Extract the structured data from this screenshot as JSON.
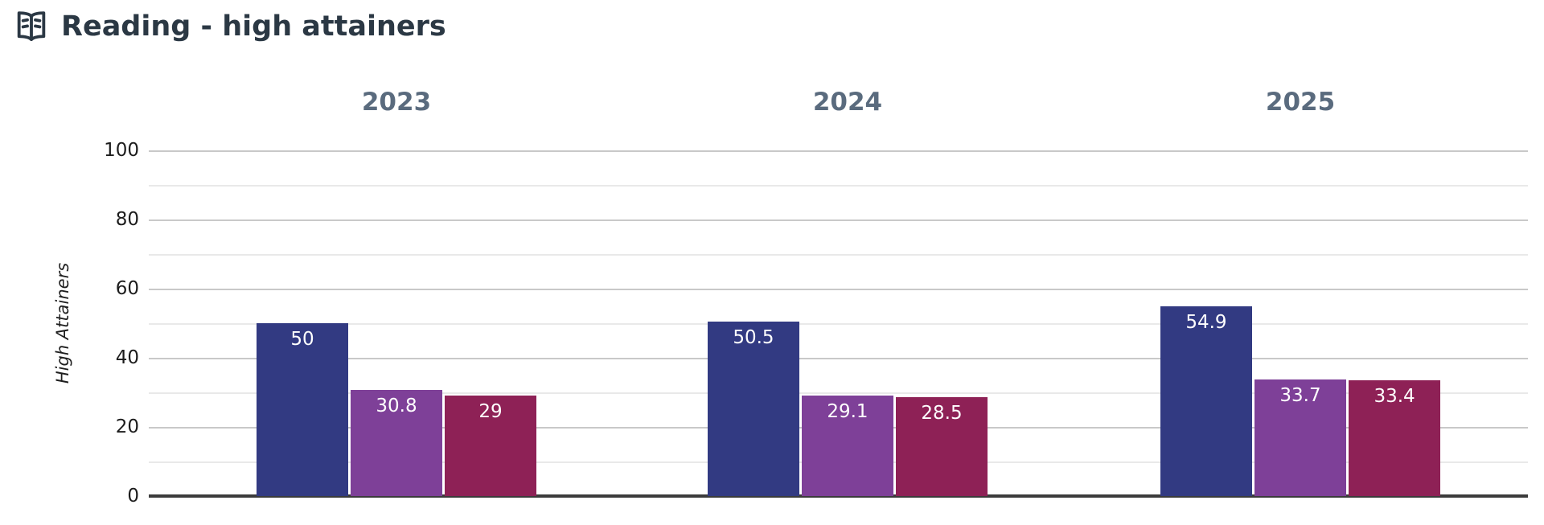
{
  "header": {
    "title": "Reading - high attainers",
    "icon": "book-open-icon"
  },
  "chart_data": {
    "type": "bar",
    "title": "Reading - high attainers",
    "categories": [
      "2023",
      "2024",
      "2025"
    ],
    "series": [
      {
        "name": "navy-series",
        "color": "#323a82",
        "values": [
          50,
          50.5,
          54.9
        ],
        "labels": [
          "50",
          "50.5",
          "54.9"
        ]
      },
      {
        "name": "purple-series",
        "color": "#7e4098",
        "values": [
          30.8,
          29.1,
          33.7
        ],
        "labels": [
          "30.8",
          "29.1",
          "33.7"
        ]
      },
      {
        "name": "crimson-series",
        "color": "#8e2156",
        "values": [
          29,
          28.5,
          33.4
        ],
        "labels": [
          "29",
          "28.5",
          "33.4"
        ]
      }
    ],
    "xlabel": "",
    "ylabel": "High Attainers",
    "ylim": [
      0,
      100
    ],
    "yticks": [
      0,
      20,
      40,
      60,
      80,
      100
    ],
    "minor_gridline_step": 10,
    "grid": "horizontal",
    "legend_position": "none",
    "value_labels_shown": true,
    "colors": {
      "title": "#2b3844",
      "year_label": "#5a6b7e",
      "tick_label": "#1c1c1c",
      "gridline_major": "#c9c9c9",
      "gridline_minor": "#e9e9e9",
      "axis_line": "#3b3b3b",
      "bar_value_text": "#ffffff"
    }
  }
}
